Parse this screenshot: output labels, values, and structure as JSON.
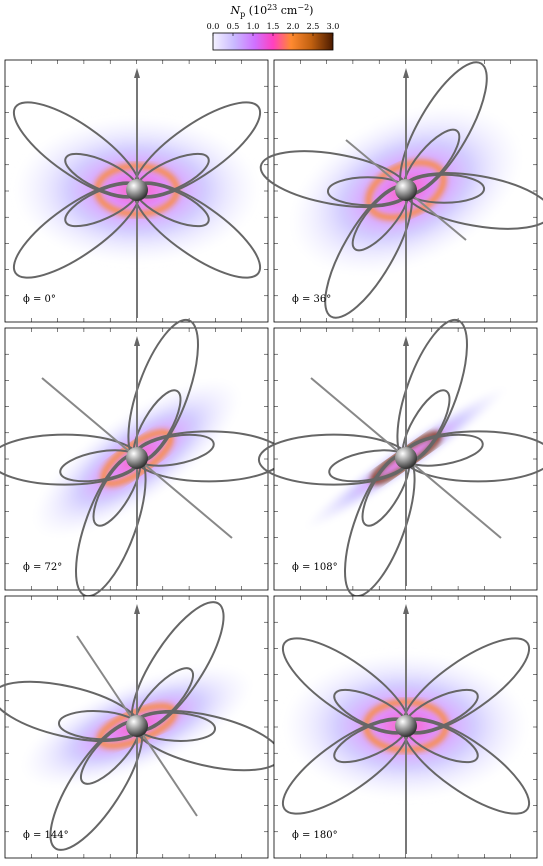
{
  "colorbar": {
    "symbol": "N",
    "subscript": "p",
    "unit_open": "(10",
    "exponent": "23",
    "unit": "cm",
    "unit_exponent": "−2",
    "unit_close": ")",
    "range": [
      0,
      3
    ],
    "ticks": [
      {
        "value": 0,
        "label": "0.0"
      },
      {
        "value": 0.5,
        "label": "0.5"
      },
      {
        "value": 1,
        "label": "1.0"
      },
      {
        "value": 1.5,
        "label": "1.5"
      },
      {
        "value": 2,
        "label": "2.0"
      },
      {
        "value": 2.5,
        "label": "2.5"
      },
      {
        "value": 3,
        "label": "3.0"
      }
    ]
  },
  "panels": [
    {
      "label": "ϕ = 0°"
    },
    {
      "label": "ϕ = 36°"
    },
    {
      "label": "ϕ = 72°"
    },
    {
      "label": "ϕ = 108°"
    },
    {
      "label": "ϕ = 144°"
    },
    {
      "label": "ϕ = 180°"
    }
  ]
}
